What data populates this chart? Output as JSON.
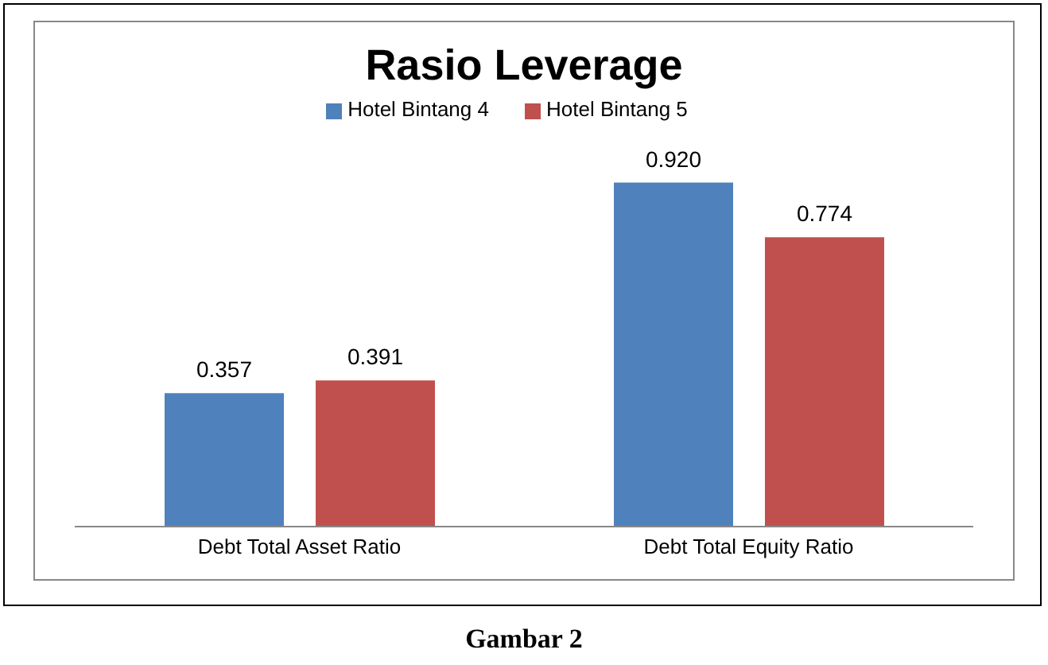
{
  "chart_data": {
    "type": "bar",
    "title": "Rasio Leverage",
    "categories": [
      "Debt Total Asset Ratio",
      "Debt Total Equity Ratio"
    ],
    "series": [
      {
        "name": "Hotel Bintang 4",
        "color": "#4f81bd",
        "values": [
          0.357,
          0.92
        ],
        "value_labels": [
          "0.357",
          "0.920"
        ]
      },
      {
        "name": "Hotel Bintang 5",
        "color": "#c0504d",
        "values": [
          0.391,
          0.774
        ],
        "value_labels": [
          "0.391",
          "0.774"
        ]
      }
    ],
    "legend": "top",
    "grid": false,
    "annotations": [
      "Gambar 2"
    ]
  }
}
